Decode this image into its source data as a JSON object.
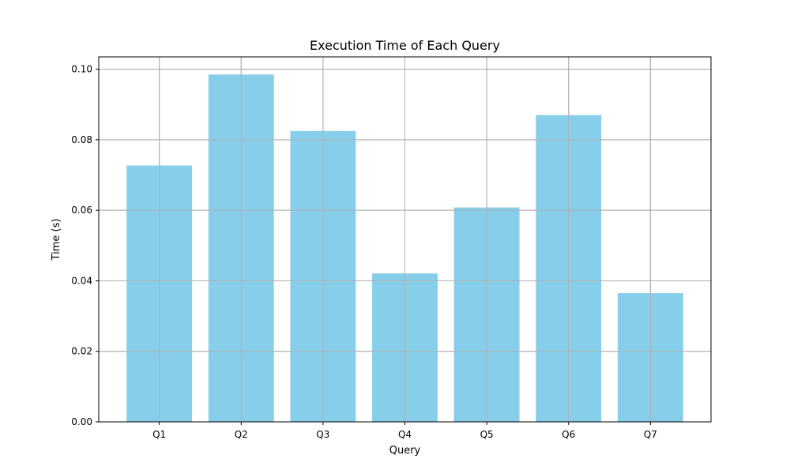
{
  "chart_data": {
    "type": "bar",
    "title": "Execution Time of Each Query",
    "xlabel": "Query",
    "ylabel": "Time (s)",
    "categories": [
      "Q1",
      "Q2",
      "Q3",
      "Q4",
      "Q5",
      "Q6",
      "Q7"
    ],
    "values": [
      0.0727,
      0.0985,
      0.0825,
      0.0421,
      0.0608,
      0.087,
      0.0365
    ],
    "ylim": [
      0,
      0.1035
    ],
    "yticks": [
      0.0,
      0.02,
      0.04,
      0.06,
      0.08,
      0.1
    ],
    "ytick_labels": [
      "0.00",
      "0.02",
      "0.04",
      "0.06",
      "0.08",
      "0.10"
    ],
    "grid": true,
    "bar_color": "#87ceeb",
    "grid_color": "#b0b0b0"
  }
}
